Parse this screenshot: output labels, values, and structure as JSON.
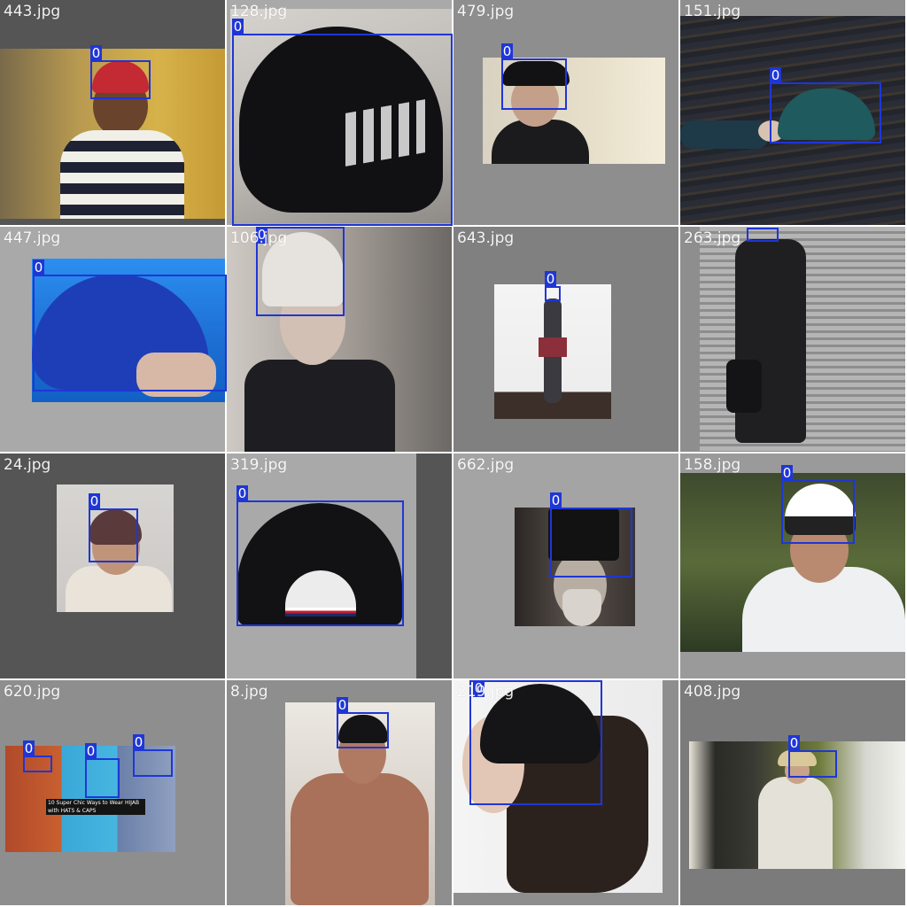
{
  "colors": {
    "box": "#1f36d6",
    "label_text": "#ffffff"
  },
  "tiles": [
    {
      "filename": "443.jpg",
      "bg": "#555555",
      "boxes": [
        {
          "label": "0"
        }
      ]
    },
    {
      "filename": "128.jpg",
      "bg": "#a9a9a9",
      "boxes": [
        {
          "label": "0"
        }
      ]
    },
    {
      "filename": "479.jpg",
      "bg": "#8e8e8e",
      "boxes": [
        {
          "label": "0"
        }
      ]
    },
    {
      "filename": "151.jpg",
      "bg": "#8e8e8e",
      "boxes": [
        {
          "label": "0"
        }
      ]
    },
    {
      "filename": "447.jpg",
      "bg": "#a9a9a9",
      "boxes": [
        {
          "label": "0"
        }
      ]
    },
    {
      "filename": "106.jpg",
      "bg": "#8e8e8e",
      "boxes": [
        {
          "label": "0"
        }
      ]
    },
    {
      "filename": "643.jpg",
      "bg": "#808080",
      "boxes": [
        {
          "label": "0"
        }
      ]
    },
    {
      "filename": "263.jpg",
      "bg": "#8e8e8e",
      "boxes": [
        {
          "label": "0"
        }
      ]
    },
    {
      "filename": "24.jpg",
      "bg": "#555555",
      "boxes": [
        {
          "label": "0"
        }
      ]
    },
    {
      "filename": "319.jpg",
      "bg": "#a9a9a9",
      "boxes": [
        {
          "label": "0"
        }
      ]
    },
    {
      "filename": "662.jpg",
      "bg": "#a4a4a4",
      "boxes": [
        {
          "label": "0"
        }
      ]
    },
    {
      "filename": "158.jpg",
      "bg": "#9a9a9a",
      "boxes": [
        {
          "label": "0"
        }
      ]
    },
    {
      "filename": "620.jpg",
      "bg": "#8e8e8e",
      "boxes": [
        {
          "label": "0"
        },
        {
          "label": "0"
        },
        {
          "label": "0"
        }
      ]
    },
    {
      "filename": "8.jpg",
      "bg": "#8e8e8e",
      "boxes": [
        {
          "label": "0"
        }
      ]
    },
    {
      "filename": "219.jpg",
      "bg": "#8e8e8e",
      "boxes": [
        {
          "label": "0"
        }
      ]
    },
    {
      "filename": "408.jpg",
      "bg": "#7b7b7b",
      "boxes": [
        {
          "label": "0"
        }
      ]
    }
  ],
  "thumbnails": {
    "620_caption": "10 Super Chic Ways to Wear HIJAB with HATS & CAPS"
  }
}
